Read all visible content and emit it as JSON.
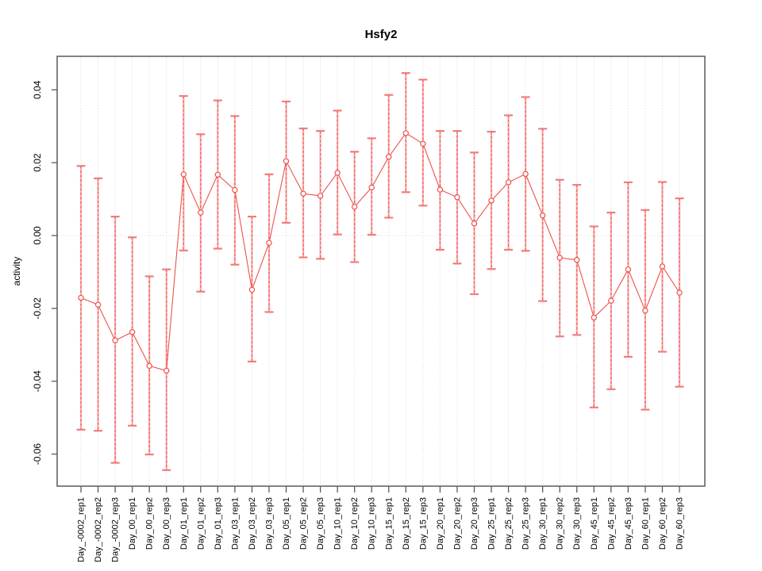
{
  "page_title": "Hsfy2",
  "chart_data": {
    "type": "line",
    "title": "Hsfy2",
    "xlabel": "",
    "ylabel": "activity",
    "legend": "none",
    "marker": "open-circle",
    "error_bars": true,
    "grid": {
      "vertical_dotted_per_category": true,
      "horizontal_dotted_at_zero": true
    },
    "ylim": [
      -0.0688,
      0.0492
    ],
    "ytick_values": [
      0.04,
      0.02,
      0.0,
      -0.02,
      -0.04,
      -0.06
    ],
    "ytick_labels": [
      "0.04",
      "0.02",
      "0.00",
      "-0.02",
      "-0.04",
      "-0.06"
    ],
    "categories": [
      "Day_-0002_rep1",
      "Day_-0002_rep2",
      "Day_-0002_rep3",
      "Day_00_rep1",
      "Day_00_rep2",
      "Day_00_rep3",
      "Day_01_rep1",
      "Day_01_rep2",
      "Day_01_rep3",
      "Day_03_rep1",
      "Day_03_rep2",
      "Day_03_rep3",
      "Day_05_rep1",
      "Day_05_rep2",
      "Day_05_rep3",
      "Day_10_rep1",
      "Day_10_rep2",
      "Day_10_rep3",
      "Day_15_rep1",
      "Day_15_rep2",
      "Day_15_rep3",
      "Day_20_rep1",
      "Day_20_rep2",
      "Day_20_rep3",
      "Day_25_rep1",
      "Day_25_rep2",
      "Day_25_rep3",
      "Day_30_rep1",
      "Day_30_rep2",
      "Day_30_rep3",
      "Day_45_rep1",
      "Day_45_rep2",
      "Day_45_rep3",
      "Day_60_rep1",
      "Day_60_rep2",
      "Day_60_rep3"
    ],
    "series": [
      {
        "name": "activity",
        "values": [
          -0.0171,
          -0.019,
          -0.0288,
          -0.0265,
          -0.0358,
          -0.0371,
          0.0168,
          0.0063,
          0.0167,
          0.0125,
          -0.0149,
          -0.002,
          0.0204,
          0.0115,
          0.0109,
          0.0172,
          0.0079,
          0.0132,
          0.0216,
          0.0281,
          0.0252,
          0.0126,
          0.0105,
          0.0033,
          0.0096,
          0.0146,
          0.0169,
          0.0055,
          -0.0061,
          -0.0067,
          -0.0225,
          -0.0179,
          -0.0093,
          -0.0206,
          -0.0085,
          -0.0157
        ],
        "ci_high": [
          0.0191,
          0.0157,
          0.0052,
          -0.0005,
          -0.0112,
          -0.0093,
          0.0383,
          0.0278,
          0.0371,
          0.0328,
          0.0052,
          0.0168,
          0.0368,
          0.0294,
          0.0287,
          0.0343,
          0.023,
          0.0267,
          0.0386,
          0.0446,
          0.0428,
          0.0287,
          0.0287,
          0.0228,
          0.0285,
          0.033,
          0.038,
          0.0293,
          0.0153,
          0.0139,
          0.0025,
          0.0063,
          0.0146,
          0.007,
          0.0147,
          0.0102
        ],
        "ci_low": [
          -0.0533,
          -0.0536,
          -0.0624,
          -0.0522,
          -0.0601,
          -0.0644,
          -0.0041,
          -0.0154,
          -0.0036,
          -0.008,
          -0.0346,
          -0.021,
          0.0035,
          -0.006,
          -0.0064,
          0.0003,
          -0.0073,
          0.0002,
          0.0049,
          0.0119,
          0.0082,
          -0.0039,
          -0.0077,
          -0.0161,
          -0.0092,
          -0.0039,
          -0.0042,
          -0.018,
          -0.0277,
          -0.0273,
          -0.0472,
          -0.0422,
          -0.0333,
          -0.0478,
          -0.0319,
          -0.0415
        ]
      }
    ],
    "colors": {
      "series_line": "#ee514d",
      "marker_stroke": "#ee514d",
      "bar_fill_light": "#f8acac",
      "bar_dash_overlay": "#ee5a55",
      "bar_cap": "#f37b7b",
      "grid": "#d6d6d6",
      "axis_box": "#5a5a5a",
      "text": "#000000"
    }
  }
}
